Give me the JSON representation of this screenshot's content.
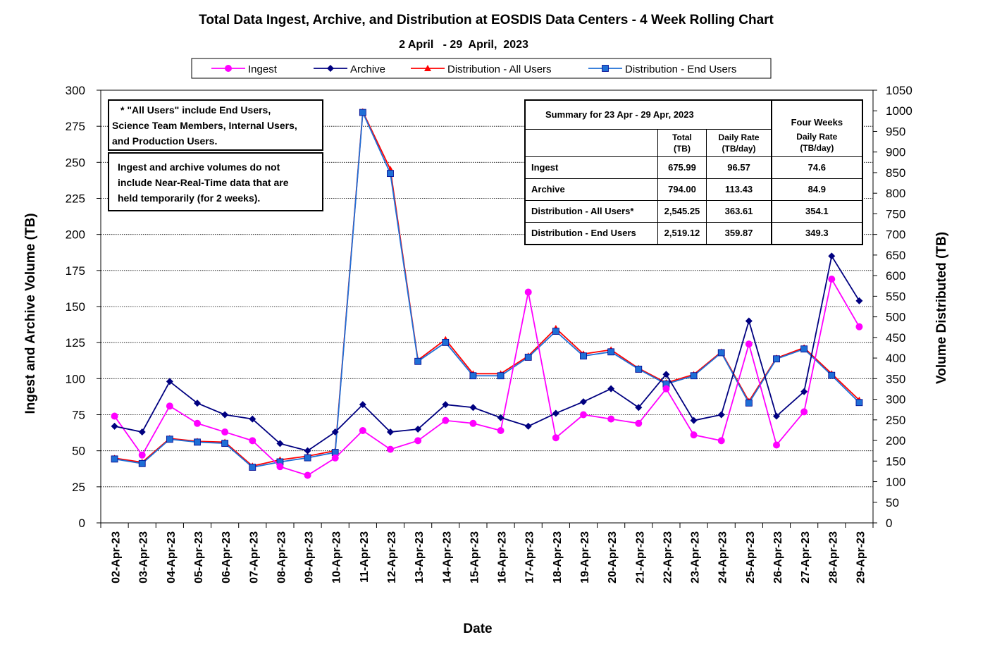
{
  "chart_data": {
    "type": "line",
    "title": "Total Data Ingest, Archive, and  Distribution at EOSDIS Data Centers - 4 Week Rolling Chart",
    "subtitle": "2 April   - 29  April,  2023",
    "xlabel": "Date",
    "ylabel": "Ingest and Archive Volume (TB)",
    "y2label": "Volume Distributed (TB)",
    "ylim": [
      0,
      300
    ],
    "y2lim": [
      0,
      1050
    ],
    "yticks": [
      0,
      25,
      50,
      75,
      100,
      125,
      150,
      175,
      200,
      225,
      250,
      275,
      300
    ],
    "y2ticks": [
      0,
      50,
      100,
      150,
      200,
      250,
      300,
      350,
      400,
      450,
      500,
      550,
      600,
      650,
      700,
      750,
      800,
      850,
      900,
      950,
      1000,
      1050
    ],
    "grid": true,
    "legend_position": "top",
    "categories": [
      "02-Apr-23",
      "03-Apr-23",
      "04-Apr-23",
      "05-Apr-23",
      "06-Apr-23",
      "07-Apr-23",
      "08-Apr-23",
      "09-Apr-23",
      "10-Apr-23",
      "11-Apr-23",
      "12-Apr-23",
      "13-Apr-23",
      "14-Apr-23",
      "15-Apr-23",
      "16-Apr-23",
      "17-Apr-23",
      "18-Apr-23",
      "19-Apr-23",
      "20-Apr-23",
      "21-Apr-23",
      "22-Apr-23",
      "23-Apr-23",
      "24-Apr-23",
      "25-Apr-23",
      "26-Apr-23",
      "27-Apr-23",
      "28-Apr-23",
      "29-Apr-23"
    ],
    "series": [
      {
        "name": "Ingest",
        "axis": "left",
        "color": "#ff00ff",
        "marker": "circle",
        "values": [
          74,
          47,
          81,
          69,
          63,
          57,
          39,
          33,
          45,
          64,
          51,
          57,
          71,
          69,
          64,
          160,
          59,
          75,
          72,
          69,
          93,
          61,
          57,
          124,
          54,
          77,
          169,
          136
        ]
      },
      {
        "name": "Archive",
        "axis": "left",
        "color": "#000080",
        "marker": "diamond",
        "values": [
          67,
          63,
          98,
          83,
          75,
          72,
          55,
          50,
          63,
          82,
          63,
          65,
          82,
          80,
          73,
          67,
          76,
          84,
          93,
          80,
          103,
          71,
          75,
          140,
          74,
          91,
          185,
          154
        ]
      },
      {
        "name": "Distribution - All Users",
        "axis": "right",
        "color": "#ff0000",
        "marker": "triangle",
        "values": [
          157,
          147,
          205,
          198,
          196,
          138,
          153,
          162,
          175,
          998,
          858,
          395,
          445,
          362,
          362,
          405,
          472,
          410,
          420,
          375,
          340,
          360,
          415,
          295,
          400,
          425,
          362,
          298
        ]
      },
      {
        "name": "Distribution - End Users",
        "axis": "right",
        "color": "#1f6fd6",
        "marker": "square",
        "values": [
          155,
          144,
          203,
          196,
          193,
          135,
          148,
          158,
          171,
          996,
          848,
          392,
          438,
          357,
          357,
          402,
          465,
          405,
          415,
          373,
          337,
          357,
          413,
          291,
          398,
          422,
          358,
          292
        ]
      }
    ],
    "annotations": [
      "* \"All Users\" include End Users, Science Team Members,  Internal Users, and Production Users.",
      "Ingest and archive volumes do not include Near-Real-Time data that are held temporarily (for 2 weeks)."
    ]
  },
  "notes": {
    "note1_line1": "* \"All Users\" include End Users,",
    "note1_line2": "Science Team Members,  Internal Users,",
    "note1_line3": "and Production Users.",
    "note2_line1": "Ingest and archive volumes do not",
    "note2_line2": "include Near-Real-Time data that are",
    "note2_line3": "held temporarily (for 2 weeks)."
  },
  "summary": {
    "title": "Summary  for  23 Apr   - 29 Apr,  2023",
    "four_weeks": "Four Weeks",
    "col_total": "Total",
    "col_total_unit": "(TB)",
    "col_rate": "Daily Rate",
    "col_rate_unit": "(TB/day)",
    "col_fw_rate": "Daily Rate",
    "col_fw_rate_unit": "(TB/day)",
    "rows": [
      {
        "label": "Ingest",
        "total": "675.99",
        "rate": "96.57",
        "fw": "74.6"
      },
      {
        "label": "Archive",
        "total": "794.00",
        "rate": "113.43",
        "fw": "84.9"
      },
      {
        "label": "Distribution - All Users*",
        "total": "2,545.25",
        "rate": "363.61",
        "fw": "354.1"
      },
      {
        "label": "Distribution - End Users",
        "total": "2,519.12",
        "rate": "359.87",
        "fw": "349.3"
      }
    ]
  }
}
